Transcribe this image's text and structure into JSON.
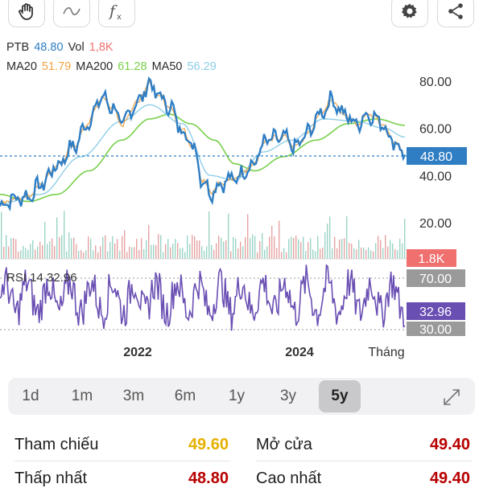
{
  "toolbar": {
    "left_icons": [
      "hand-icon",
      "wave-icon",
      "function-icon"
    ],
    "right_icons": [
      "gear-icon",
      "share-icon"
    ]
  },
  "legend": {
    "symbol": "PTB",
    "price": "48.80",
    "vol_label": "Vol",
    "vol_value": "1,8K",
    "ma20_label": "MA20",
    "ma20_value": "51.79",
    "ma200_label": "MA200",
    "ma200_value": "61.28",
    "ma50_label": "MA50",
    "ma50_value": "56.29"
  },
  "colors": {
    "price_line": "#2f7ec4",
    "ma20": "#f2a446",
    "ma200": "#78d04b",
    "ma50": "#8fcde8",
    "rsi": "#6a4fb3",
    "price_badge": "#2f7ec4",
    "vol_badge": "#f07070",
    "rsi_badge": "#6a4fb3",
    "ref_yellow": "#e6b000",
    "dark_red": "#b80000"
  },
  "chart_data": {
    "type": "line",
    "x_labels": [
      "2022",
      "2024",
      "Tháng"
    ],
    "price_axis": [
      "80.00",
      "60.00",
      "40.00",
      "20.00"
    ],
    "price_ylim": [
      17,
      82
    ],
    "current_price": 48.8,
    "current_price_label": "48.80",
    "volume_label": "1.8K",
    "rsi_title": "RSI 14 32.96",
    "rsi_levels": [
      "70.00",
      "30.00"
    ],
    "rsi_current_label": "32.96",
    "price_keypoints": [
      [
        0,
        27
      ],
      [
        0.03,
        30
      ],
      [
        0.07,
        31
      ],
      [
        0.1,
        36
      ],
      [
        0.14,
        44
      ],
      [
        0.18,
        52
      ],
      [
        0.22,
        63
      ],
      [
        0.25,
        73
      ],
      [
        0.28,
        69
      ],
      [
        0.3,
        62
      ],
      [
        0.34,
        71
      ],
      [
        0.37,
        79
      ],
      [
        0.39,
        74
      ],
      [
        0.42,
        69
      ],
      [
        0.45,
        59
      ],
      [
        0.48,
        52
      ],
      [
        0.5,
        38
      ],
      [
        0.52,
        33
      ],
      [
        0.55,
        37
      ],
      [
        0.58,
        39
      ],
      [
        0.62,
        44
      ],
      [
        0.66,
        55
      ],
      [
        0.7,
        56
      ],
      [
        0.73,
        52
      ],
      [
        0.76,
        58
      ],
      [
        0.79,
        66
      ],
      [
        0.82,
        72
      ],
      [
        0.85,
        66
      ],
      [
        0.88,
        62
      ],
      [
        0.91,
        66
      ],
      [
        0.94,
        63
      ],
      [
        0.97,
        55
      ],
      [
        1.0,
        48.8
      ]
    ],
    "ma50_keypoints": [
      [
        0,
        28
      ],
      [
        0.1,
        32
      ],
      [
        0.2,
        48
      ],
      [
        0.3,
        63
      ],
      [
        0.37,
        70
      ],
      [
        0.45,
        62
      ],
      [
        0.52,
        40
      ],
      [
        0.58,
        38
      ],
      [
        0.65,
        50
      ],
      [
        0.72,
        55
      ],
      [
        0.8,
        64
      ],
      [
        0.88,
        63
      ],
      [
        0.95,
        60
      ],
      [
        1.0,
        56.3
      ]
    ],
    "ma200_keypoints": [
      [
        0,
        32
      ],
      [
        0.07,
        29
      ],
      [
        0.14,
        32
      ],
      [
        0.22,
        42
      ],
      [
        0.3,
        55
      ],
      [
        0.37,
        64
      ],
      [
        0.42,
        66
      ],
      [
        0.47,
        62
      ],
      [
        0.53,
        55
      ],
      [
        0.58,
        45
      ],
      [
        0.63,
        42
      ],
      [
        0.7,
        48
      ],
      [
        0.78,
        55
      ],
      [
        0.86,
        62
      ],
      [
        0.93,
        64
      ],
      [
        1.0,
        61.3
      ]
    ]
  },
  "ranges": {
    "items": [
      "1d",
      "1m",
      "3m",
      "6m",
      "1y",
      "3y",
      "5y"
    ],
    "active": "5y"
  },
  "stats": {
    "ref_label": "Tham chiếu",
    "ref_value": "49.60",
    "open_label": "Mở cửa",
    "open_value": "49.40",
    "low_label": "Thấp nhất",
    "low_value": "48.80",
    "high_label": "Cao nhất",
    "high_value": "49.40"
  }
}
